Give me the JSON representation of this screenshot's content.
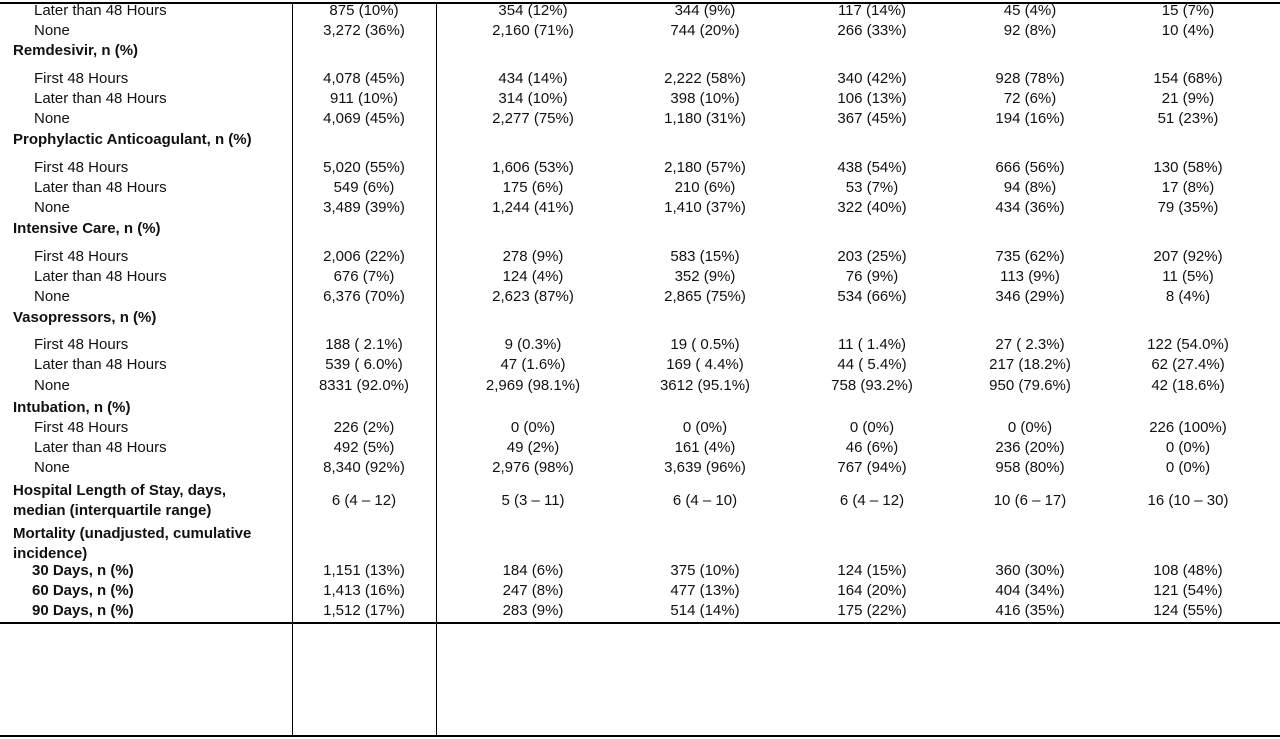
{
  "rows": [
    {
      "kind": "item",
      "label": "Later than 48 Hours",
      "values": [
        "875 (10%)",
        "354 (12%)",
        "344 (9%)",
        "117 (14%)",
        "45 (4%)",
        "15 (7%)"
      ]
    },
    {
      "kind": "item",
      "label": "None",
      "values": [
        "3,272 (36%)",
        "2,160 (71%)",
        "744 (20%)",
        "266 (33%)",
        "92 (8%)",
        "10 (4%)"
      ]
    },
    {
      "kind": "section",
      "label": "Remdesivir, n (%)"
    },
    {
      "kind": "item",
      "label": "First 48 Hours",
      "values": [
        "4,078 (45%)",
        "434 (14%)",
        "2,222 (58%)",
        "340 (42%)",
        "928 (78%)",
        "154 (68%)"
      ]
    },
    {
      "kind": "item",
      "label": "Later than 48 Hours",
      "values": [
        "911 (10%)",
        "314 (10%)",
        "398 (10%)",
        "106 (13%)",
        "72 (6%)",
        "21 (9%)"
      ]
    },
    {
      "kind": "item",
      "label": "None",
      "values": [
        "4,069 (45%)",
        "2,277 (75%)",
        "1,180 (31%)",
        "367 (45%)",
        "194 (16%)",
        "51 (23%)"
      ]
    },
    {
      "kind": "section",
      "label": "Prophylactic Anticoagulant, n (%)"
    },
    {
      "kind": "item",
      "label": "First 48 Hours",
      "values": [
        "5,020 (55%)",
        "1,606 (53%)",
        "2,180 (57%)",
        "438 (54%)",
        "666 (56%)",
        "130 (58%)"
      ]
    },
    {
      "kind": "item",
      "label": "Later than 48 Hours",
      "values": [
        "549 (6%)",
        "175 (6%)",
        "210 (6%)",
        "53 (7%)",
        "94 (8%)",
        "17 (8%)"
      ]
    },
    {
      "kind": "item",
      "label": "None",
      "values": [
        "3,489 (39%)",
        "1,244 (41%)",
        "1,410 (37%)",
        "322 (40%)",
        "434 (36%)",
        "79 (35%)"
      ]
    },
    {
      "kind": "section",
      "label": "Intensive Care, n (%)"
    },
    {
      "kind": "item",
      "label": "First 48 Hours",
      "values": [
        "2,006 (22%)",
        "278 (9%)",
        "583 (15%)",
        "203 (25%)",
        "735 (62%)",
        "207 (92%)"
      ]
    },
    {
      "kind": "item",
      "label": "Later than 48 Hours",
      "values": [
        "676 (7%)",
        "124 (4%)",
        "352 (9%)",
        "76 (9%)",
        "113 (9%)",
        "11 (5%)"
      ]
    },
    {
      "kind": "item",
      "label": "None",
      "values": [
        "6,376 (70%)",
        "2,623 (87%)",
        "2,865 (75%)",
        "534 (66%)",
        "346 (29%)",
        "8 (4%)"
      ]
    },
    {
      "kind": "section",
      "label": "Vasopressors, n (%)"
    },
    {
      "kind": "item",
      "label": "First 48 Hours",
      "values": [
        "188 ( 2.1%)",
        "9 (0.3%)",
        "19 ( 0.5%)",
        "11 ( 1.4%)",
        "27 ( 2.3%)",
        "122 (54.0%)"
      ]
    },
    {
      "kind": "item",
      "label": "Later than 48 Hours",
      "values": [
        "539 ( 6.0%)",
        "47 (1.6%)",
        "169 ( 4.4%)",
        "44 ( 5.4%)",
        "217 (18.2%)",
        "62 (27.4%)"
      ]
    },
    {
      "kind": "item",
      "label": "None",
      "values": [
        "8331 (92.0%)",
        "2,969 (98.1%)",
        "3612 (95.1%)",
        "758 (93.2%)",
        "950 (79.6%)",
        "42 (18.6%)"
      ]
    },
    {
      "kind": "section",
      "label": "Intubation, n (%)"
    },
    {
      "kind": "item",
      "label": "First 48 Hours",
      "values": [
        "226 (2%)",
        "0 (0%)",
        "0 (0%)",
        "0 (0%)",
        "0 (0%)",
        "226 (100%)"
      ]
    },
    {
      "kind": "item",
      "label": "Later than 48 Hours",
      "values": [
        "492 (5%)",
        "49 (2%)",
        "161 (4%)",
        "46 (6%)",
        "236 (20%)",
        "0 (0%)"
      ]
    },
    {
      "kind": "item",
      "label": "None",
      "values": [
        "8,340 (92%)",
        "2,976 (98%)",
        "3,639 (96%)",
        "767 (94%)",
        "958 (80%)",
        "0 (0%)"
      ]
    },
    {
      "kind": "multi",
      "label": "Hospital Length of Stay, days,",
      "label2": "median (interquartile range)",
      "values": [
        "6 (4 – 12)",
        "5 (3 – 11)",
        "6 (4 – 10)",
        "6 (4 – 12)",
        "10 (6 – 17)",
        "16 (10 – 30)"
      ]
    },
    {
      "kind": "multi-header",
      "label": "Mortality (unadjusted, cumulative",
      "label2": "incidence)"
    },
    {
      "kind": "sub",
      "label": "30 Days, n (%)",
      "values": [
        "1,151 (13%)",
        "184 (6%)",
        "375 (10%)",
        "124 (15%)",
        "360 (30%)",
        "108 (48%)"
      ]
    },
    {
      "kind": "sub",
      "label": "60 Days, n (%)",
      "values": [
        "1,413 (16%)",
        "247 (8%)",
        "477 (13%)",
        "164 (20%)",
        "404 (34%)",
        "121 (54%)"
      ]
    },
    {
      "kind": "sub",
      "label": "90 Days, n (%)",
      "values": [
        "1,512 (17%)",
        "283 (9%)",
        "514 (14%)",
        "175 (22%)",
        "416 (35%)",
        "124 (55%)"
      ]
    }
  ]
}
